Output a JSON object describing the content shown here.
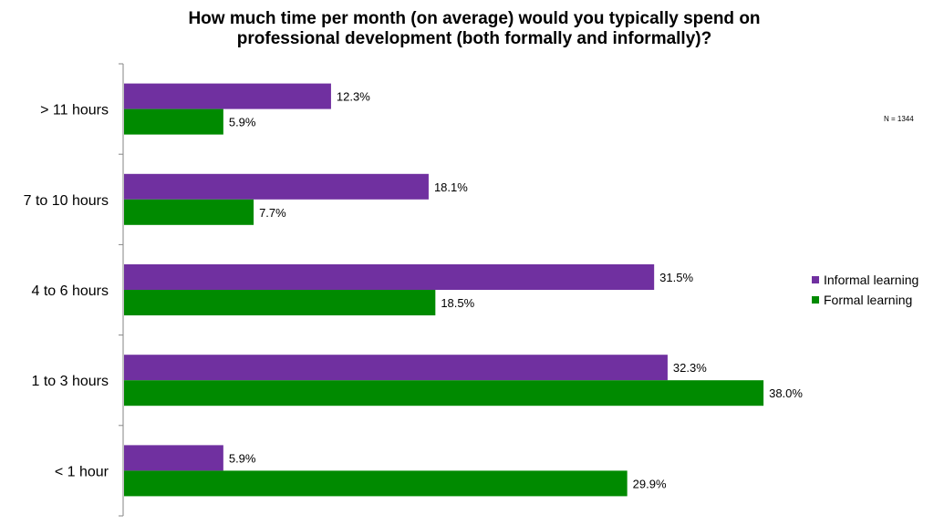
{
  "chart_data": {
    "type": "bar",
    "orientation": "horizontal",
    "title": "How much time per month (on average) would you typically spend on professional development (both formally and informally)?",
    "title_lines": [
      "How much time per month (on average) would you typically spend on",
      "professional development (both formally and informally)?"
    ],
    "categories": [
      "> 11 hours",
      "7 to 10 hours",
      "4 to 6 hours",
      "1 to 3 hours",
      "< 1 hour"
    ],
    "series": [
      {
        "name": "Informal learning",
        "color": "#7030a0",
        "values": [
          12.3,
          18.1,
          31.5,
          32.3,
          5.9
        ]
      },
      {
        "name": "Formal learning",
        "color": "#008a00",
        "values": [
          5.9,
          7.7,
          18.5,
          38.0,
          29.9
        ]
      }
    ],
    "data_label_format": "{v}%",
    "xlim": [
      0,
      40
    ],
    "grid": false,
    "legend_position": "right",
    "annotation": "N = 1344"
  }
}
